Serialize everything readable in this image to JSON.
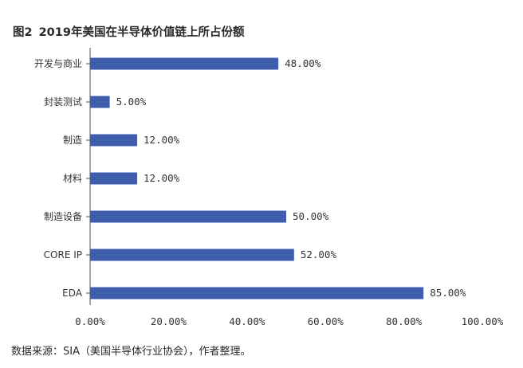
{
  "figure": {
    "number": "图2",
    "title": "2019年美国在半导体价值链上所占份额",
    "source": "数据来源：SIA（美国半导体行业协会），作者整理。"
  },
  "colors": {
    "bar": "#3f5fad",
    "axis": "#555555",
    "text": "#333333"
  },
  "chart_data": {
    "type": "bar",
    "orientation": "horizontal",
    "title": "2019年美国在半导体价值链上所占份额",
    "categories": [
      "开发与商业",
      "封装测试",
      "制造",
      "材料",
      "制造设备",
      "CORE IP",
      "EDA"
    ],
    "values": [
      48,
      5,
      12,
      12,
      50,
      52,
      85
    ],
    "value_labels": [
      "48.00%",
      "5.00%",
      "12.00%",
      "12.00%",
      "50.00%",
      "52.00%",
      "85.00%"
    ],
    "x_ticks": [
      "0.00%",
      "20.00%",
      "40.00%",
      "60.00%",
      "80.00%",
      "100.00%"
    ],
    "xlim": [
      0,
      100
    ],
    "xlabel": "",
    "ylabel": "",
    "grid": false,
    "legend": "none"
  }
}
